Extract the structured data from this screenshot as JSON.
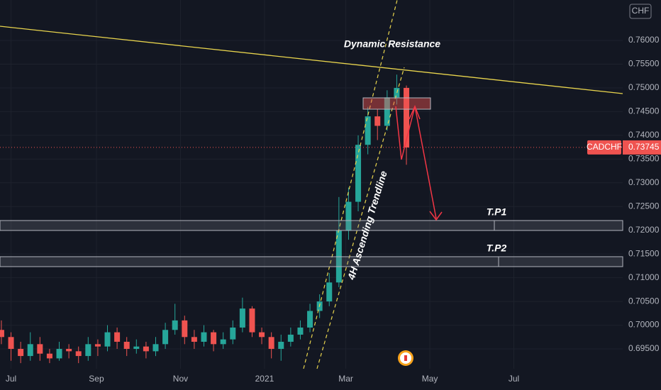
{
  "chart_data": {
    "type": "candlestick",
    "symbol": "CADCHF",
    "currency": "CHF",
    "last_price": 0.73745,
    "annotations": [
      "Dynamic Resistance",
      "4H Ascending Trendline",
      "T.P1",
      "T.P2"
    ],
    "up_color": "#26a69a",
    "down_color": "#ef5350",
    "x": [
      "2020-06-24",
      "2020-07-01",
      "2020-07-08",
      "2020-07-15",
      "2020-07-22",
      "2020-07-29",
      "2020-08-05",
      "2020-08-12",
      "2020-08-19",
      "2020-08-26",
      "2020-09-02",
      "2020-09-09",
      "2020-09-16",
      "2020-09-23",
      "2020-09-30",
      "2020-10-07",
      "2020-10-14",
      "2020-10-21",
      "2020-10-28",
      "2020-11-04",
      "2020-11-11",
      "2020-11-18",
      "2020-11-25",
      "2020-12-02",
      "2020-12-09",
      "2020-12-16",
      "2020-12-23",
      "2020-12-30",
      "2021-01-06",
      "2021-01-13",
      "2021-01-20",
      "2021-01-27",
      "2021-02-03",
      "2021-02-10",
      "2021-02-17",
      "2021-02-24",
      "2021-03-03",
      "2021-03-10",
      "2021-03-17",
      "2021-03-24",
      "2021-03-31",
      "2021-04-07",
      "2021-04-14"
    ],
    "open": [
      0.699,
      0.6975,
      0.695,
      0.6935,
      0.696,
      0.694,
      0.693,
      0.695,
      0.6945,
      0.6935,
      0.696,
      0.6955,
      0.6985,
      0.6965,
      0.695,
      0.6955,
      0.6945,
      0.696,
      0.699,
      0.701,
      0.6975,
      0.6965,
      0.6985,
      0.696,
      0.697,
      0.6995,
      0.7035,
      0.6985,
      0.6975,
      0.695,
      0.6965,
      0.698,
      0.6995,
      0.703,
      0.705,
      0.709,
      0.72,
      0.726,
      0.738,
      0.744,
      0.742,
      0.748,
      0.75
    ],
    "high": [
      0.701,
      0.6985,
      0.6965,
      0.6985,
      0.6975,
      0.695,
      0.6965,
      0.696,
      0.6955,
      0.6975,
      0.697,
      0.7,
      0.6995,
      0.6975,
      0.697,
      0.6965,
      0.6975,
      0.7005,
      0.7045,
      0.702,
      0.699,
      0.7,
      0.699,
      0.6985,
      0.701,
      0.7058,
      0.704,
      0.6995,
      0.6985,
      0.698,
      0.6995,
      0.701,
      0.7045,
      0.7065,
      0.711,
      0.727,
      0.729,
      0.74,
      0.746,
      0.7455,
      0.7495,
      0.7528,
      0.7505
    ],
    "low": [
      0.696,
      0.6925,
      0.692,
      0.6925,
      0.6925,
      0.692,
      0.6925,
      0.693,
      0.692,
      0.6925,
      0.6935,
      0.6945,
      0.695,
      0.6935,
      0.694,
      0.693,
      0.6935,
      0.695,
      0.698,
      0.696,
      0.695,
      0.6955,
      0.6945,
      0.695,
      0.696,
      0.6985,
      0.6975,
      0.696,
      0.693,
      0.6925,
      0.6955,
      0.697,
      0.6985,
      0.7015,
      0.704,
      0.708,
      0.718,
      0.724,
      0.736,
      0.739,
      0.741,
      0.7465,
      0.7338
    ],
    "close": [
      0.6975,
      0.695,
      0.6935,
      0.696,
      0.694,
      0.693,
      0.695,
      0.6945,
      0.6935,
      0.696,
      0.6955,
      0.6985,
      0.6965,
      0.695,
      0.6955,
      0.6945,
      0.696,
      0.699,
      0.701,
      0.6975,
      0.6965,
      0.6985,
      0.696,
      0.697,
      0.6995,
      0.7035,
      0.6985,
      0.6975,
      0.695,
      0.6965,
      0.698,
      0.6995,
      0.703,
      0.705,
      0.709,
      0.72,
      0.726,
      0.738,
      0.744,
      0.742,
      0.748,
      0.75,
      0.73745
    ],
    "xlim": [
      "2020-06-23",
      "2021-09-18"
    ],
    "xticks": [
      {
        "value": "2020-07-01",
        "label": "Jul"
      },
      {
        "value": "2020-09-01",
        "label": "Sep"
      },
      {
        "value": "2020-11-01",
        "label": "Nov"
      },
      {
        "value": "2021-01-01",
        "label": "2021"
      },
      {
        "value": "2021-03-01",
        "label": "Mar"
      },
      {
        "value": "2021-05-01",
        "label": "May"
      },
      {
        "value": "2021-07-01",
        "label": "Jul"
      }
    ],
    "ylim": [
      0.69082,
      0.76852
    ],
    "yticks": [
      {
        "value": 0.695,
        "label": "0.69500"
      },
      {
        "value": 0.7,
        "label": "0.70000"
      },
      {
        "value": 0.705,
        "label": "0.70500"
      },
      {
        "value": 0.71,
        "label": "0.71000"
      },
      {
        "value": 0.715,
        "label": "0.71500"
      },
      {
        "value": 0.72,
        "label": "0.72000"
      },
      {
        "value": 0.725,
        "label": "0.72500"
      },
      {
        "value": 0.73,
        "label": "0.73000"
      },
      {
        "value": 0.735,
        "label": "0.73500"
      },
      {
        "value": 0.74,
        "label": "0.74000"
      },
      {
        "value": 0.745,
        "label": "0.74500"
      },
      {
        "value": 0.75,
        "label": "0.75000"
      },
      {
        "value": 0.755,
        "label": "0.75500"
      },
      {
        "value": 0.76,
        "label": "0.76000"
      }
    ]
  }
}
